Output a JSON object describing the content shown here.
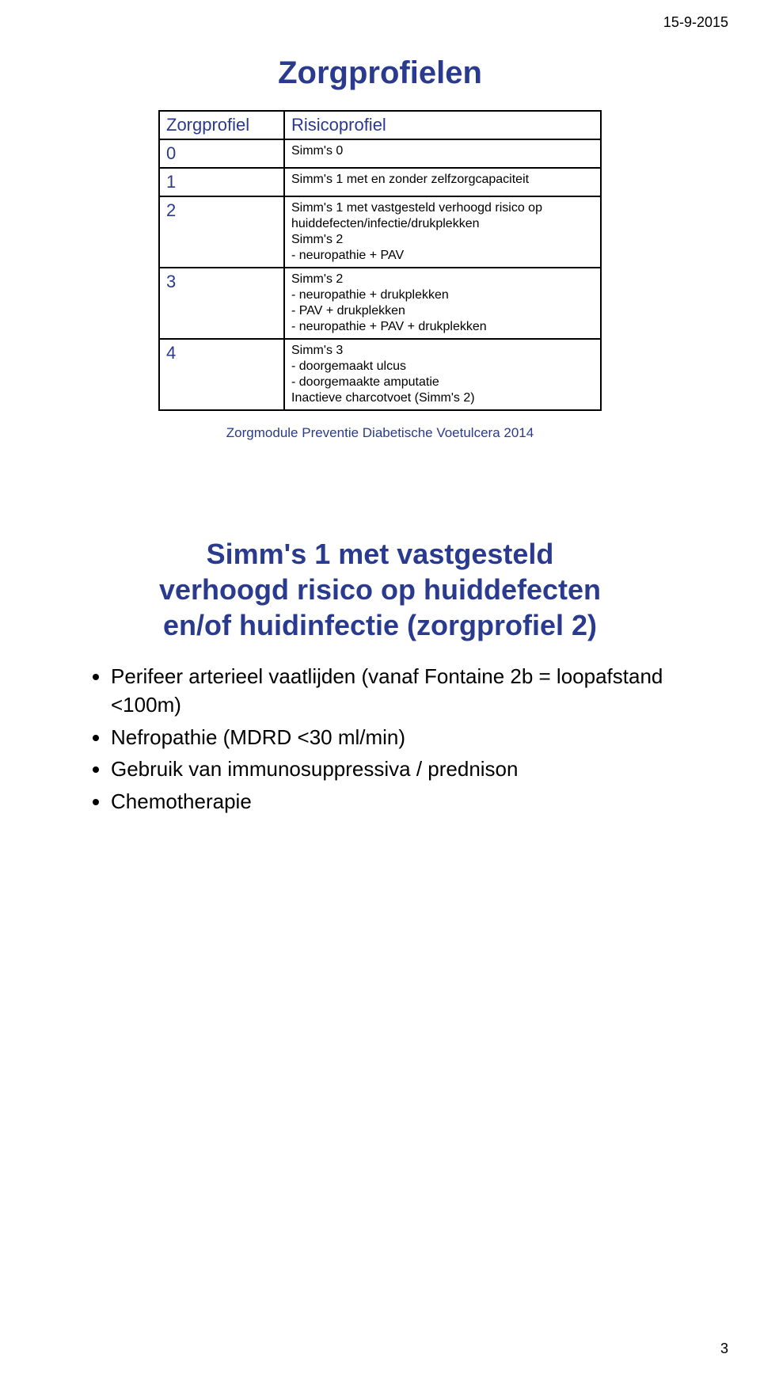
{
  "header": {
    "date": "15-9-2015"
  },
  "footer": {
    "page_num": "3"
  },
  "colors": {
    "title_blue": "#2a3b8f",
    "text_black": "#000000",
    "border_black": "#000000",
    "background": "#ffffff"
  },
  "slide1": {
    "title": "Zorgprofielen",
    "table": {
      "header": {
        "col1": "Zorgprofiel",
        "col2": "Risicoprofiel"
      },
      "rows": [
        {
          "zp": "0",
          "main": "Simm's 0",
          "lines": []
        },
        {
          "zp": "1",
          "main": "Simm's 1 met en zonder zelfzorgcapaciteit",
          "lines": []
        },
        {
          "zp": "2",
          "main": "Simm's 1 met vastgesteld verhoogd risico op huiddefecten/infectie/drukplekken",
          "lines": [
            "Simm's 2",
            "- neuropathie + PAV"
          ]
        },
        {
          "zp": "3",
          "main": "Simm's 2",
          "lines": [
            "- neuropathie + drukplekken",
            "- PAV + drukplekken",
            "- neuropathie + PAV + drukplekken"
          ]
        },
        {
          "zp": "4",
          "main": "Simm's 3",
          "lines": [
            "- doorgemaakt ulcus",
            "- doorgemaakte amputatie",
            "Inactieve charcotvoet (Simm's 2)"
          ]
        }
      ]
    },
    "footnote": "Zorgmodule Preventie Diabetische Voetulcera 2014"
  },
  "slide2": {
    "title_lines": [
      "Simm's 1 met vastgesteld",
      "verhoogd risico op huiddefecten",
      "en/of huidinfectie (zorgprofiel 2)"
    ],
    "bullets": [
      "Perifeer arterieel vaatlijden (vanaf Fontaine 2b = loopafstand <100m)",
      "Nefropathie (MDRD <30 ml/min)",
      "Gebruik van immunosuppressiva / prednison",
      "Chemotherapie"
    ]
  }
}
